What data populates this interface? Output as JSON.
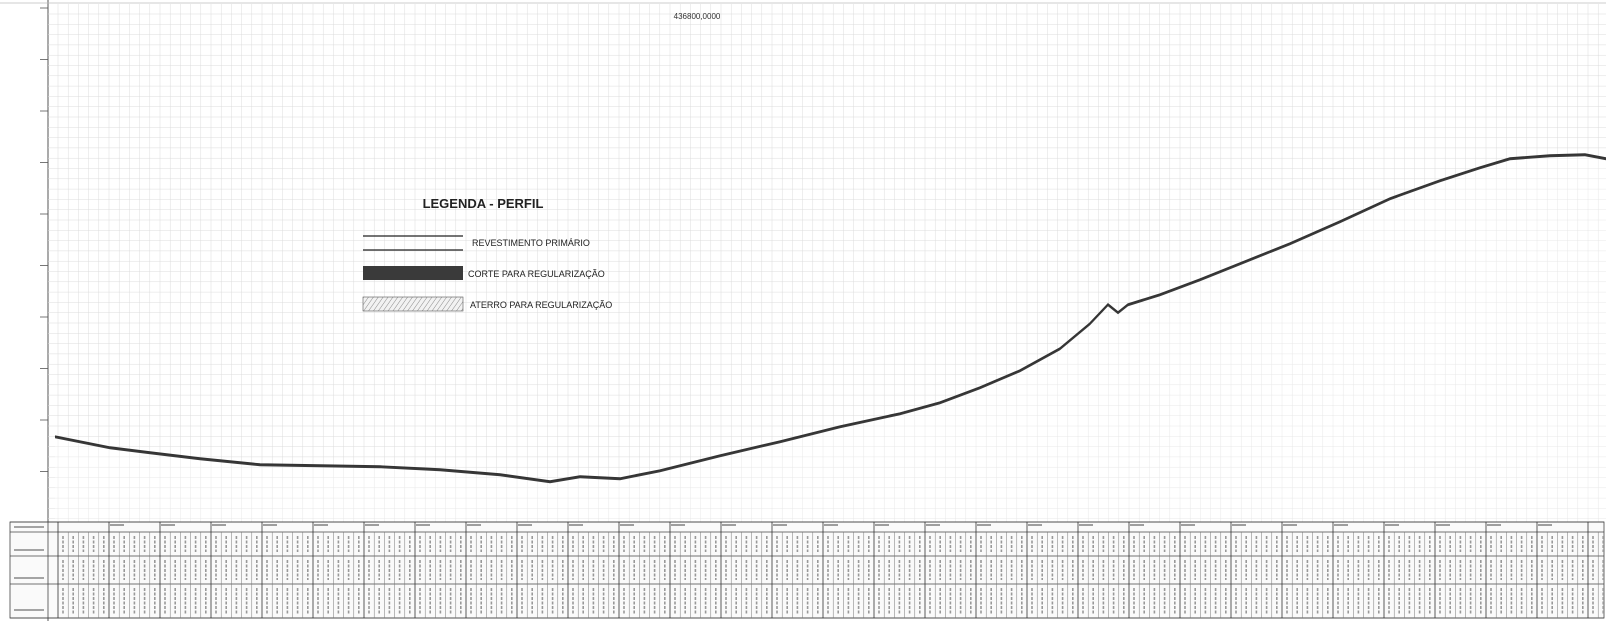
{
  "drawing": {
    "top_coordinate": "436800,0000"
  },
  "legend": {
    "title": "LEGENDA - PERFIL",
    "items": [
      {
        "label": "REVESTIMENTO PRIMÁRIO",
        "pattern": "double-line"
      },
      {
        "label": "CORTE PARA REGULARIZAÇÃO",
        "pattern": "solid-dark"
      },
      {
        "label": "ATERRO PARA REGULARIZAÇÃO",
        "pattern": "hatched"
      }
    ]
  },
  "colors": {
    "grid": "#c9c9c9",
    "terrain_line": "#333333",
    "cut_fill": "#3a3a3a",
    "table_line": "#555555"
  },
  "icons": [
    "double-line-swatch",
    "solid-dark-swatch",
    "hatched-swatch"
  ]
}
